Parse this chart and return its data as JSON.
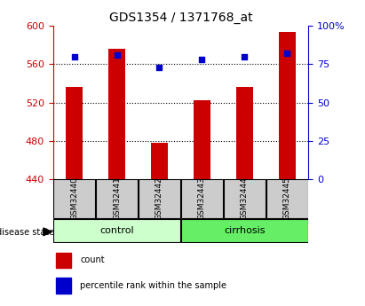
{
  "title": "GDS1354 / 1371768_at",
  "samples": [
    "GSM32440",
    "GSM32441",
    "GSM32442",
    "GSM32443",
    "GSM32444",
    "GSM32445"
  ],
  "counts": [
    536,
    576,
    478,
    522,
    536,
    594
  ],
  "percentile_ranks": [
    80,
    81,
    73,
    78,
    80,
    82
  ],
  "ylim_left": [
    440,
    600
  ],
  "ylim_right": [
    0,
    100
  ],
  "yticks_left": [
    440,
    480,
    520,
    560,
    600
  ],
  "yticks_right": [
    0,
    25,
    50,
    75,
    100
  ],
  "yticklabels_right": [
    "0",
    "25",
    "50",
    "75",
    "100%"
  ],
  "bar_color": "#cc0000",
  "dot_color": "#0000cc",
  "control_label": "control",
  "cirrhosis_label": "cirrhosis",
  "disease_state_label": "disease state",
  "legend_count": "count",
  "legend_percentile": "percentile rank within the sample",
  "control_color": "#ccffcc",
  "cirrhosis_color": "#66ee66",
  "label_box_color": "#cccccc",
  "title_color": "#000000",
  "title_fontsize": 10,
  "bar_width": 0.4
}
